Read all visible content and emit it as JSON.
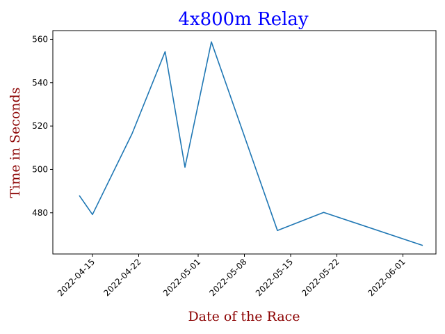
{
  "chart_data": {
    "type": "line",
    "title": "4x800m Relay",
    "xlabel": "Date of the Race",
    "ylabel": "Time in Seconds",
    "title_color": "#0000ff",
    "label_color": "#8b0000",
    "line_color": "#1f77b4",
    "grid": false,
    "legend": "none",
    "x_tick_labels": [
      "2022-04-15",
      "2022-04-22",
      "2022-05-01",
      "2022-05-08",
      "2022-05-15",
      "2022-05-22",
      "2022-06-01"
    ],
    "x_ticks": [
      "2022-04-15",
      "2022-04-22",
      "2022-05-01",
      "2022-05-08",
      "2022-05-15",
      "2022-05-22",
      "2022-06-01"
    ],
    "y_ticks": [
      480,
      500,
      520,
      540,
      560
    ],
    "xlim": [
      "2022-04-09",
      "2022-06-06"
    ],
    "ylim": [
      461,
      564
    ],
    "series": [
      {
        "x": [
          "2022-04-13",
          "2022-04-15",
          "2022-04-21",
          "2022-04-26",
          "2022-04-29",
          "2022-05-03",
          "2022-05-13",
          "2022-05-20",
          "2022-06-04"
        ],
        "y": [
          488,
          479.2,
          516.5,
          554.3,
          501,
          558.8,
          471.8,
          480.2,
          464.9
        ]
      }
    ]
  }
}
